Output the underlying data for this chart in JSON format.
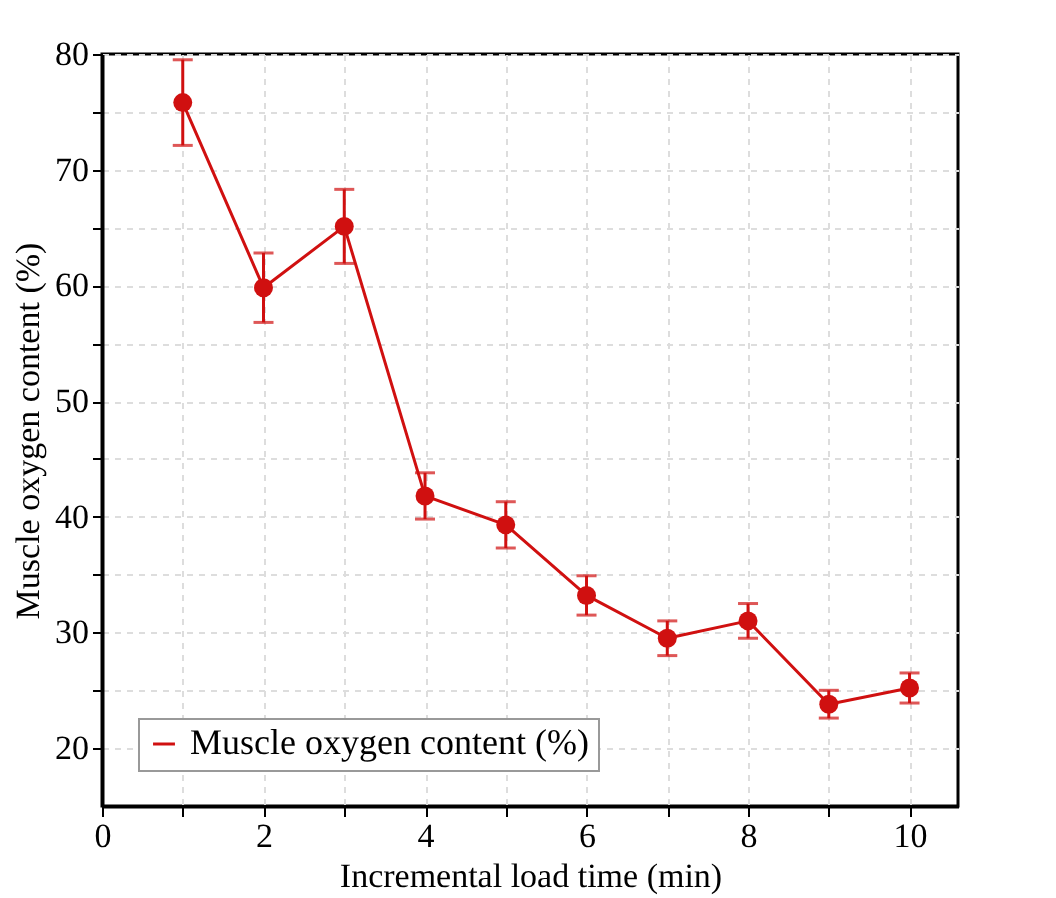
{
  "chart_data": {
    "type": "line",
    "xlabel": "Incremental load time (min)",
    "ylabel": "Muscle oxygen content (%)",
    "x": [
      1,
      2,
      3,
      4,
      5,
      6,
      7,
      8,
      9,
      10
    ],
    "series": [
      {
        "name": "Muscle oxygen content (%)",
        "color": "#d01010",
        "values": [
          75.8,
          59.8,
          65.1,
          41.8,
          39.3,
          33.2,
          29.5,
          31.0,
          23.8,
          25.2
        ],
        "errors": [
          3.7,
          3.0,
          3.2,
          2.0,
          2.0,
          1.7,
          1.5,
          1.5,
          1.2,
          1.3
        ]
      }
    ],
    "xlim": [
      0,
      10.6
    ],
    "ylim": [
      15,
      80
    ],
    "xticks": [
      0,
      {
        "value": 1,
        "label": null
      },
      2,
      {
        "value": 3,
        "label": null
      },
      4,
      {
        "value": 5,
        "label": null
      },
      6,
      {
        "value": 7,
        "label": null
      },
      8,
      {
        "value": 9,
        "label": null
      },
      10
    ],
    "yticks": [
      20,
      {
        "value": 25,
        "label": null
      },
      30,
      {
        "value": 35,
        "label": null
      },
      40,
      {
        "value": 45,
        "label": null
      },
      50,
      {
        "value": 55,
        "label": null
      },
      60,
      {
        "value": 65,
        "label": null
      },
      70,
      {
        "value": 75,
        "label": null
      },
      80
    ],
    "grid": true,
    "legend": "bottom left",
    "marker": "circle",
    "line_style": "solid"
  }
}
